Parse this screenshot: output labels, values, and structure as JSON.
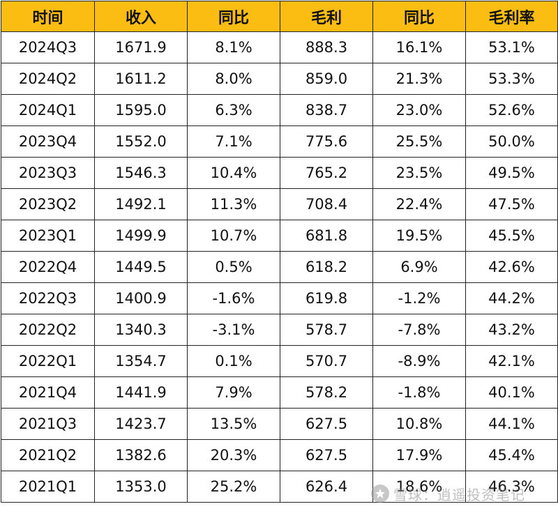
{
  "table": {
    "headers": [
      "时间",
      "收入",
      "同比",
      "毛利",
      "同比",
      "毛利率"
    ],
    "rows": [
      [
        "2024Q3",
        "1671.9",
        "8.1%",
        "888.3",
        "16.1%",
        "53.1%"
      ],
      [
        "2024Q2",
        "1611.2",
        "8.0%",
        "859.0",
        "21.3%",
        "53.3%"
      ],
      [
        "2024Q1",
        "1595.0",
        "6.3%",
        "838.7",
        "23.0%",
        "52.6%"
      ],
      [
        "2023Q4",
        "1552.0",
        "7.1%",
        "775.6",
        "25.5%",
        "50.0%"
      ],
      [
        "2023Q3",
        "1546.3",
        "10.4%",
        "765.2",
        "23.5%",
        "49.5%"
      ],
      [
        "2023Q2",
        "1492.1",
        "11.3%",
        "708.4",
        "22.4%",
        "47.5%"
      ],
      [
        "2023Q1",
        "1499.9",
        "10.7%",
        "681.8",
        "19.5%",
        "45.5%"
      ],
      [
        "2022Q4",
        "1449.5",
        "0.5%",
        "618.2",
        "6.9%",
        "42.6%"
      ],
      [
        "2022Q3",
        "1400.9",
        "-1.6%",
        "619.8",
        "-1.2%",
        "44.2%"
      ],
      [
        "2022Q2",
        "1340.3",
        "-3.1%",
        "578.7",
        "-7.8%",
        "43.2%"
      ],
      [
        "2022Q1",
        "1354.7",
        "0.1%",
        "570.7",
        "-8.9%",
        "42.1%"
      ],
      [
        "2021Q4",
        "1441.9",
        "7.9%",
        "578.2",
        "-1.8%",
        "40.1%"
      ],
      [
        "2021Q3",
        "1423.7",
        "13.5%",
        "627.5",
        "10.8%",
        "44.1%"
      ],
      [
        "2021Q2",
        "1382.6",
        "20.3%",
        "627.5",
        "17.9%",
        "45.4%"
      ],
      [
        "2021Q1",
        "1353.0",
        "25.2%",
        "626.4",
        "18.6%",
        "46.3%"
      ]
    ]
  },
  "watermark": {
    "text": "雪球：逍遥投资笔记",
    "icon": "snowball-logo-icon"
  },
  "colors": {
    "header_background": "#fbbd12",
    "border": "#222222",
    "text": "#111111"
  }
}
